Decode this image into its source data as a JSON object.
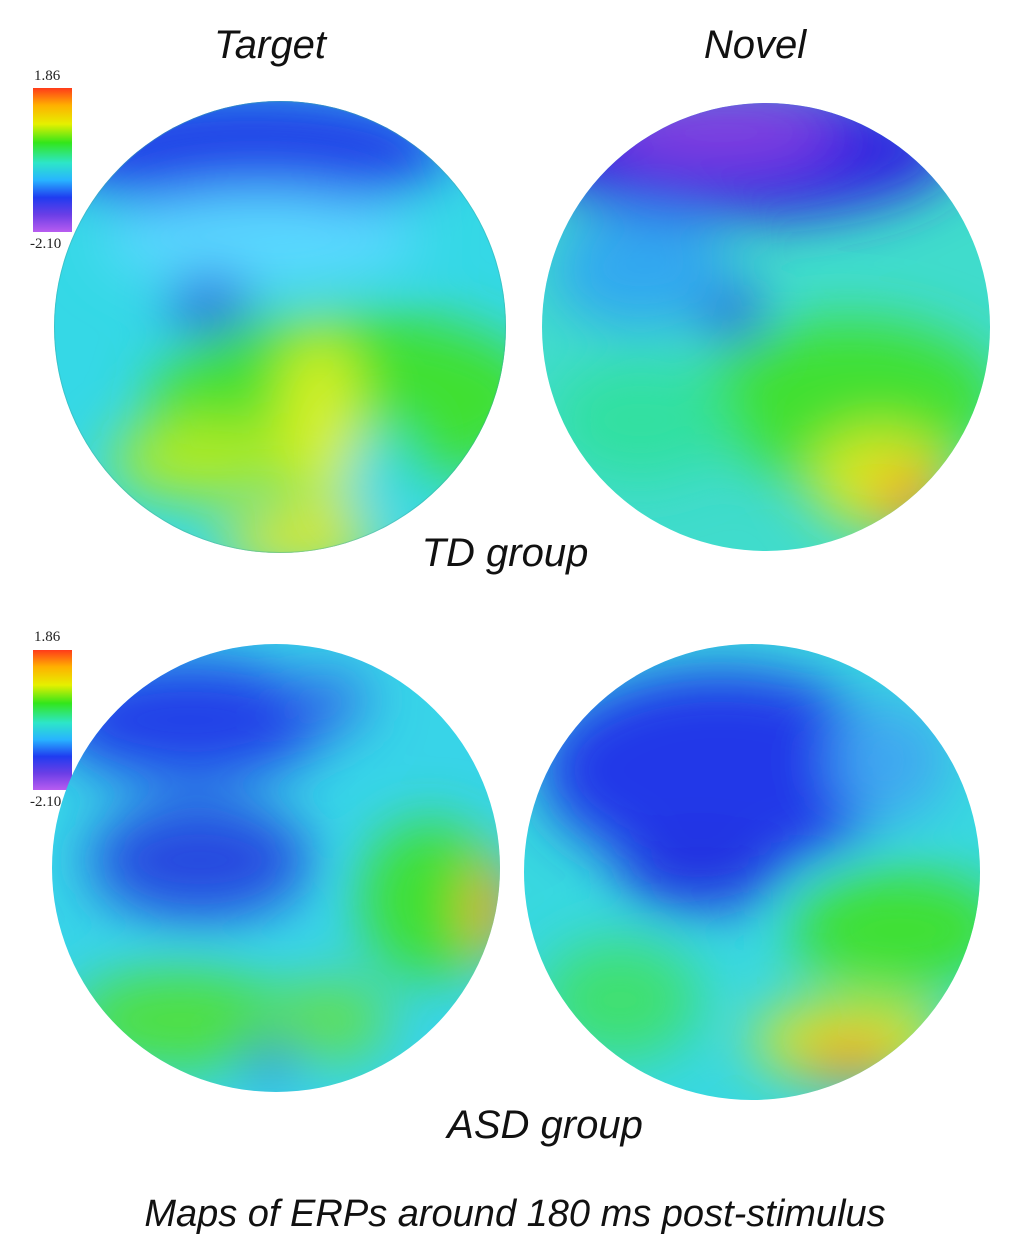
{
  "header": {
    "columns": [
      "Target",
      "Novel"
    ]
  },
  "groups": [
    "TD group",
    "ASD group"
  ],
  "colorbar": {
    "max": "1.86",
    "min": "-2.10"
  },
  "caption": "Maps of ERPs around 180 ms post-stimulus"
}
